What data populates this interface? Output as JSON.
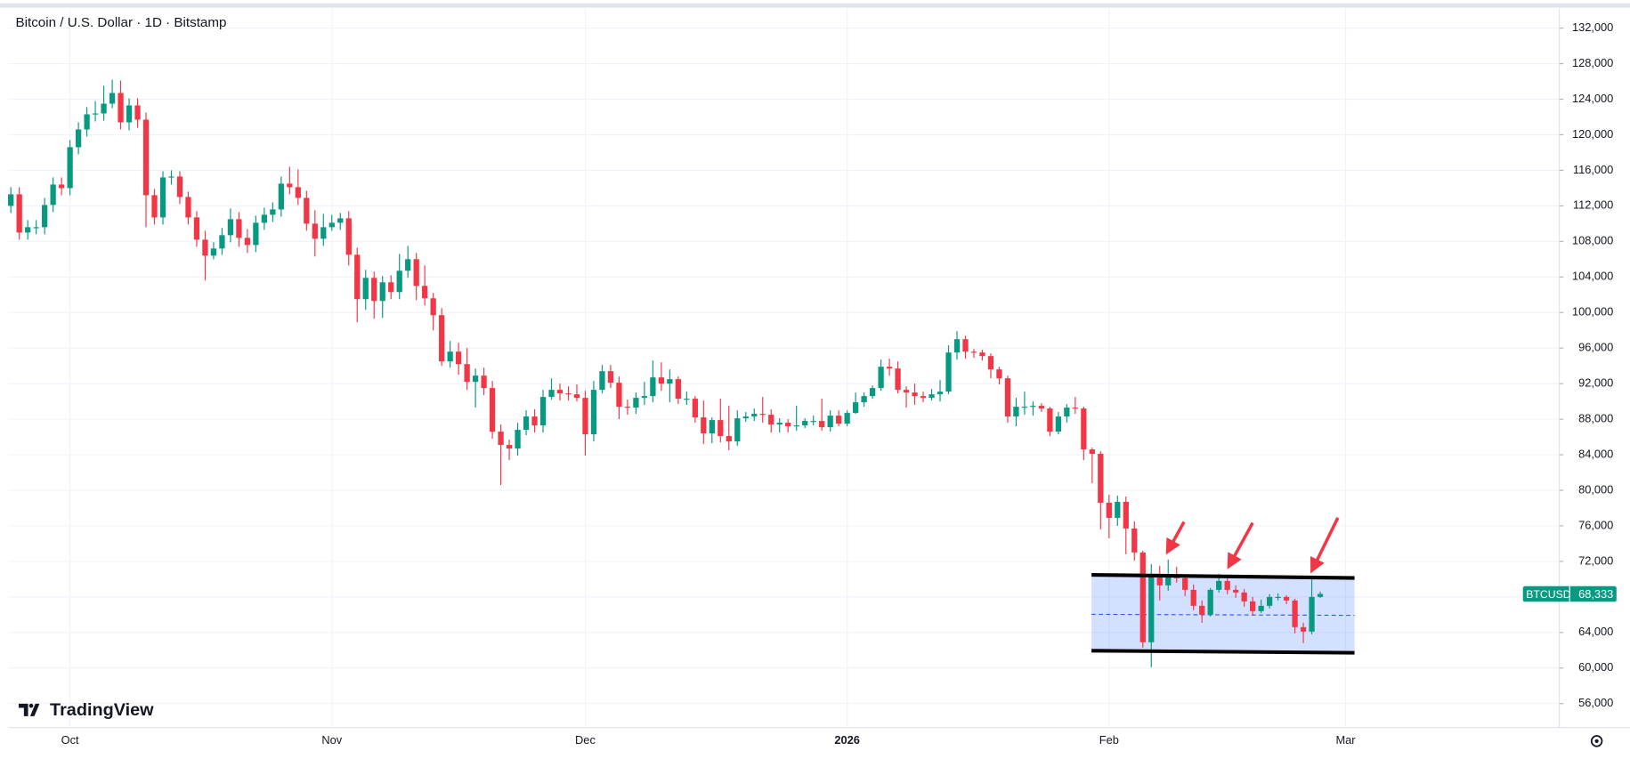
{
  "chart_data": {
    "type": "candlestick",
    "title": "Bitcoin / U.S. Dollar · 1D · Bitstamp",
    "brand": "TradingView",
    "up_color": "#089981",
    "down_color": "#f23645",
    "grid": true,
    "categories": [
      null,
      null,
      null,
      null,
      null,
      null,
      null,
      null,
      null,
      null,
      null,
      null,
      null,
      null,
      null,
      null,
      null,
      null,
      null,
      null,
      null,
      null,
      null,
      null,
      null,
      null,
      null,
      null,
      null,
      null,
      null,
      null,
      null,
      null,
      null,
      null,
      null,
      null,
      null,
      null,
      null,
      null,
      null,
      null,
      null,
      null,
      null,
      null,
      null,
      null,
      null,
      null,
      null,
      null,
      null,
      null,
      null,
      null,
      null,
      null,
      null,
      null,
      null,
      null,
      null,
      null,
      null,
      null,
      null,
      null,
      null,
      null,
      null,
      null,
      null,
      null,
      null,
      null,
      null,
      null,
      null,
      null,
      null,
      null,
      null,
      null,
      null,
      null,
      null,
      null,
      null,
      null,
      null,
      null,
      null,
      null,
      null,
      null,
      null,
      null,
      null,
      null,
      null,
      null,
      null,
      null,
      null,
      null,
      null,
      null,
      null,
      null,
      null,
      null,
      null,
      null,
      null,
      null,
      null,
      null,
      null,
      null,
      null,
      null,
      null,
      null,
      null,
      null,
      null,
      null,
      null,
      null,
      null,
      null,
      null,
      null,
      null,
      null,
      null,
      null,
      null,
      null,
      null,
      null,
      null,
      null,
      null,
      null,
      null,
      null,
      null,
      null,
      null,
      null,
      null,
      null
    ],
    "open": [
      112000,
      113300,
      109000,
      109600,
      109600,
      112100,
      114400,
      114000,
      118600,
      120600,
      122300,
      122400,
      123500,
      124700,
      121400,
      123300,
      121700,
      113200,
      110700,
      115200,
      115300,
      113000,
      110700,
      108200,
      106400,
      107200,
      108700,
      110500,
      108400,
      107600,
      110100,
      111000,
      111600,
      114500,
      114100,
      112900,
      110000,
      108300,
      109600,
      110100,
      110600,
      106500,
      101500,
      103900,
      101300,
      103400,
      102300,
      104700,
      106000,
      103000,
      101600,
      99700,
      94500,
      95600,
      94200,
      92200,
      92900,
      91500,
      86600,
      85100,
      84700,
      86800,
      88300,
      87300,
      90500,
      91300,
      90900,
      90800,
      90400,
      86300,
      91300,
      93400,
      92100,
      89400,
      89300,
      90400,
      90600,
      92700,
      92000,
      92500,
      90300,
      90300,
      88200,
      86400,
      87900,
      86100,
      85500,
      88100,
      88300,
      88600,
      88500,
      87400,
      87600,
      87200,
      87300,
      87800,
      87800,
      87100,
      88400,
      87500,
      88700,
      89900,
      90600,
      91500,
      93900,
      93700,
      91300,
      91000,
      90600,
      90400,
      90800,
      91100,
      95500,
      97000,
      95600,
      95500,
      95100,
      93600,
      92600,
      88300,
      89400,
      89400,
      89500,
      89200,
      86600,
      88300,
      89300,
      89200,
      84600,
      84100,
      78600,
      76900,
      78700,
      75700,
      73000,
      62900,
      70500,
      69300,
      70500,
      70100,
      68800,
      67000,
      66000,
      68800,
      69800,
      68800,
      68500,
      67500,
      66400,
      67000,
      68000,
      68000,
      67600,
      64600,
      64100,
      68000
    ],
    "high": [
      114100,
      114100,
      110400,
      110400,
      112900,
      115200,
      115200,
      119400,
      121400,
      123100,
      123800,
      125500,
      126200,
      126100,
      124100,
      124100,
      122500,
      113900,
      115900,
      116000,
      115900,
      113600,
      111400,
      109200,
      107900,
      109500,
      111700,
      111300,
      109400,
      110900,
      111800,
      112400,
      115300,
      116400,
      116100,
      113700,
      111500,
      111100,
      111000,
      111200,
      111400,
      107300,
      104800,
      104600,
      104100,
      104200,
      106600,
      107500,
      106700,
      105300,
      102200,
      100500,
      96800,
      96600,
      96000,
      93700,
      93800,
      92300,
      87400,
      85700,
      87600,
      89000,
      89100,
      91300,
      92600,
      92000,
      91700,
      91900,
      91200,
      92300,
      94100,
      94100,
      92800,
      90200,
      91000,
      92200,
      94600,
      94400,
      93600,
      92800,
      91100,
      90600,
      90100,
      88200,
      90300,
      89500,
      89000,
      88800,
      89200,
      90500,
      89100,
      88100,
      88000,
      89500,
      88100,
      88400,
      90300,
      89000,
      89000,
      89000,
      91000,
      91000,
      91800,
      94700,
      94800,
      94500,
      91700,
      92000,
      91100,
      91400,
      92400,
      96300,
      97900,
      97400,
      95900,
      95800,
      95400,
      93900,
      92900,
      90400,
      91100,
      90000,
      89800,
      89400,
      88800,
      89700,
      90500,
      89400,
      84800,
      84400,
      79500,
      79400,
      79300,
      76500,
      73200,
      71700,
      71500,
      72200,
      71400,
      70500,
      69400,
      67600,
      69000,
      70600,
      70200,
      69300,
      68900,
      68000,
      67700,
      68300,
      68400,
      68200,
      67800,
      65100,
      70200,
      68600
    ],
    "low": [
      111200,
      108200,
      108200,
      108800,
      108800,
      111300,
      113200,
      113200,
      117800,
      119800,
      121500,
      121600,
      123000,
      120600,
      120500,
      120800,
      109600,
      109900,
      109900,
      114400,
      112200,
      109900,
      107400,
      103600,
      106000,
      106500,
      107900,
      107400,
      106700,
      106800,
      109300,
      110200,
      110800,
      113300,
      112100,
      109200,
      106300,
      107500,
      109200,
      109300,
      105300,
      98900,
      100300,
      99300,
      99400,
      101500,
      101500,
      103900,
      101400,
      100800,
      98000,
      94000,
      93800,
      93000,
      91300,
      89300,
      90700,
      85800,
      80600,
      83400,
      83900,
      86200,
      86500,
      86500,
      90200,
      90100,
      90100,
      90000,
      83900,
      85500,
      90900,
      91500,
      88000,
      88500,
      88600,
      89600,
      89900,
      91200,
      89900,
      89700,
      89600,
      87600,
      85200,
      85300,
      85400,
      84500,
      85000,
      87700,
      87800,
      87600,
      86500,
      86500,
      86500,
      86700,
      87000,
      87300,
      86700,
      86600,
      87200,
      87200,
      88600,
      89400,
      90300,
      91200,
      92900,
      90900,
      89300,
      89600,
      89900,
      90100,
      90000,
      90800,
      94700,
      94800,
      94900,
      94600,
      92600,
      91900,
      87600,
      87200,
      88500,
      88400,
      88800,
      86100,
      86300,
      87600,
      88600,
      83400,
      80800,
      75600,
      74600,
      76000,
      72800,
      72100,
      62300,
      60100,
      67600,
      68700,
      69600,
      68100,
      66500,
      65100,
      65800,
      68500,
      68300,
      67900,
      66900,
      65900,
      66200,
      66700,
      67600,
      67200,
      63900,
      62800,
      63800,
      67900
    ],
    "close": [
      113300,
      109000,
      109600,
      109600,
      112100,
      114400,
      114000,
      118600,
      120600,
      122300,
      122400,
      123500,
      124700,
      121400,
      123300,
      121700,
      113200,
      110700,
      115200,
      115300,
      113000,
      110700,
      108200,
      106400,
      107200,
      108700,
      110500,
      108400,
      107600,
      110100,
      111000,
      111600,
      114500,
      114100,
      112900,
      110000,
      108300,
      109600,
      110100,
      110600,
      106500,
      101500,
      103900,
      101300,
      103400,
      102300,
      104700,
      106000,
      103000,
      101600,
      99700,
      94500,
      95600,
      94200,
      92200,
      92900,
      91500,
      86600,
      85100,
      84700,
      86800,
      88300,
      87300,
      90500,
      91300,
      90900,
      90800,
      90400,
      86300,
      91300,
      93400,
      92100,
      89400,
      89300,
      90400,
      90600,
      92700,
      92000,
      92500,
      90300,
      90300,
      88200,
      86400,
      87900,
      86100,
      85500,
      88100,
      88300,
      88600,
      88500,
      87400,
      87600,
      87200,
      87300,
      87800,
      87800,
      87100,
      88400,
      87500,
      88700,
      89900,
      90600,
      91500,
      93900,
      93700,
      91300,
      91000,
      90600,
      90400,
      90800,
      91100,
      95500,
      97000,
      95600,
      95500,
      95100,
      93600,
      92600,
      88300,
      89400,
      89400,
      89500,
      89200,
      86600,
      88300,
      89300,
      89200,
      84600,
      84100,
      78600,
      76900,
      78700,
      75700,
      73000,
      62900,
      70500,
      69300,
      70500,
      70100,
      68800,
      67000,
      66000,
      68800,
      69800,
      68800,
      68500,
      67500,
      66400,
      67000,
      68000,
      68000,
      67600,
      64600,
      64100,
      68000,
      68333
    ],
    "last_price": {
      "symbol": "BTCUSD",
      "value": 68333,
      "label": "68,333"
    },
    "xlim": [
      -0.3,
      183.3
    ],
    "xticks": [
      {
        "value": 7,
        "label": "Oct"
      },
      {
        "value": 38,
        "label": "Nov"
      },
      {
        "value": 68,
        "label": "Dec"
      },
      {
        "value": 99,
        "label": "2026"
      },
      {
        "value": 130,
        "label": "Feb"
      },
      {
        "value": 158,
        "label": "Mar"
      }
    ],
    "ylim": [
      53300,
      134200
    ],
    "yticks": [
      {
        "value": 56000,
        "label": "56,000"
      },
      {
        "value": 60000,
        "label": "60,000"
      },
      {
        "value": 64000,
        "label": "64,000"
      },
      {
        "value": 68000,
        "label": "68,000"
      },
      {
        "value": 72000,
        "label": "72,000"
      },
      {
        "value": 76000,
        "label": "76,000"
      },
      {
        "value": 80000,
        "label": "80,000"
      },
      {
        "value": 84000,
        "label": "84,000"
      },
      {
        "value": 88000,
        "label": "88,000"
      },
      {
        "value": 92000,
        "label": "92,000"
      },
      {
        "value": 96000,
        "label": "96,000"
      },
      {
        "value": 100000,
        "label": "100,000"
      },
      {
        "value": 104000,
        "label": "104,000"
      },
      {
        "value": 108000,
        "label": "108,000"
      },
      {
        "value": 112000,
        "label": "112,000"
      },
      {
        "value": 116000,
        "label": "116,000"
      },
      {
        "value": 120000,
        "label": "120,000"
      },
      {
        "value": 124000,
        "label": "124,000"
      },
      {
        "value": 128000,
        "label": "128,000"
      },
      {
        "value": 132000,
        "label": "132,000"
      }
    ]
  }
}
